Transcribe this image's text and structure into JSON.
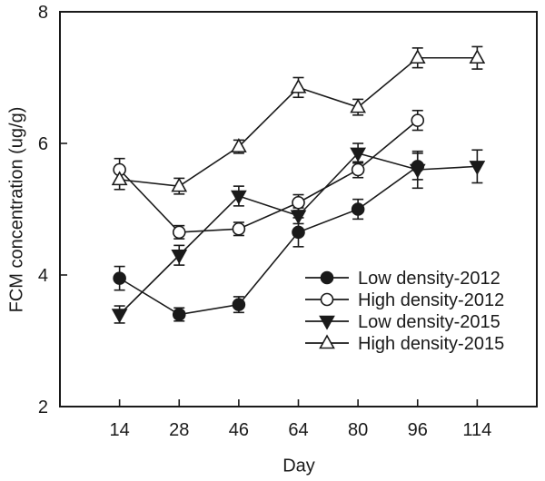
{
  "chart_data": {
    "type": "line",
    "title": "",
    "xlabel": "Day",
    "ylabel": "FCM concentration (ug/g)",
    "x_categories": [
      "14",
      "28",
      "46",
      "64",
      "80",
      "96",
      "114"
    ],
    "ylim": [
      2,
      8
    ],
    "yticks": [
      2,
      4,
      6,
      8
    ],
    "grid": false,
    "legend_position": "inside lower-right",
    "axis_color": "#1a1a1a",
    "marker_open_fill": "#ffffff",
    "series": [
      {
        "name": "Low density-2012",
        "marker": "circle",
        "marker_fill": "filled",
        "values": [
          3.95,
          3.4,
          3.55,
          4.65,
          5.0,
          5.65,
          null
        ],
        "errors": [
          0.18,
          0.1,
          0.12,
          0.22,
          0.15,
          0.2,
          null
        ]
      },
      {
        "name": "High density-2012",
        "marker": "circle",
        "marker_fill": "open",
        "values": [
          5.6,
          4.65,
          4.7,
          5.1,
          5.6,
          6.35,
          null
        ],
        "errors": [
          0.17,
          0.1,
          0.1,
          0.12,
          0.12,
          0.15,
          null
        ]
      },
      {
        "name": "Low density-2015",
        "marker": "triangle-down",
        "marker_fill": "filled",
        "values": [
          3.4,
          4.3,
          5.2,
          4.9,
          5.85,
          5.6,
          5.65
        ],
        "errors": [
          0.13,
          0.15,
          0.15,
          0.12,
          0.15,
          0.28,
          0.25
        ]
      },
      {
        "name": "High density-2015",
        "marker": "triangle-up",
        "marker_fill": "open",
        "values": [
          5.45,
          5.35,
          5.95,
          6.85,
          6.55,
          7.3,
          7.3
        ],
        "errors": [
          0.15,
          0.12,
          0.1,
          0.15,
          0.12,
          0.15,
          0.17
        ]
      }
    ]
  }
}
